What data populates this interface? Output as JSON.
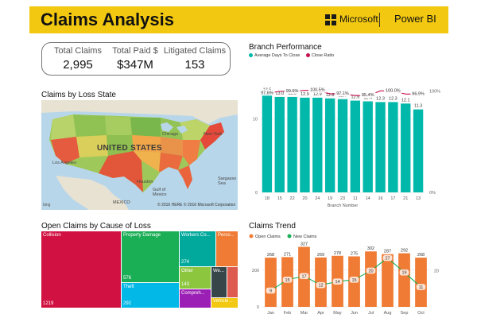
{
  "header": {
    "title": "Claims Analysis",
    "microsoft": "Microsoft",
    "product": "Power BI",
    "background": "#F2C811"
  },
  "kpis": [
    {
      "label": "Total Claims",
      "value": "2,995"
    },
    {
      "label": "Total Paid $",
      "value": "$347M"
    },
    {
      "label": "Litigated Claims",
      "value": "153"
    }
  ],
  "map": {
    "title": "Claims by Loss State",
    "country_label": "UNITED STATES",
    "labels": [
      "Chicago",
      "New York",
      "Los Angeles",
      "Houston",
      "Gulf of Mexico",
      "MEXICO",
      "Sargasso Sea"
    ],
    "copyright": "© 2016 HERE   © 2016 Microsoft Corporation",
    "attribution": "bing"
  },
  "chart_data": [
    {
      "type": "bar",
      "title": "Branch Performance",
      "xlabel": "Branch Number",
      "legend": [
        "Average Days To Close",
        "Close Ratio"
      ],
      "legend_position": "top-left",
      "categories": [
        "18",
        "15",
        "22",
        "20",
        "24",
        "19",
        "23",
        "11",
        "14",
        "16",
        "17",
        "21",
        "13"
      ],
      "series": [
        {
          "name": "Average Days To Close",
          "kind": "bar",
          "color": "#01B8AA",
          "values": [
            13.5,
            13.0,
            13.0,
            12.9,
            12.9,
            12.8,
            12.7,
            12.5,
            12.4,
            12.3,
            12.3,
            12.1,
            11.3
          ],
          "data_labels": [
            "13.5",
            "13.0",
            "13.0",
            "12.9",
            "12.9",
            "12.8",
            "12.7",
            "12.5",
            "12.4",
            "12.3",
            "12.3",
            "12.1",
            "11.3"
          ]
        },
        {
          "name": "Close Ratio",
          "kind": "line",
          "color": "#C4124A",
          "values": [
            97.6,
            99.6,
            99.6,
            100.5,
            100.5,
            97.1,
            97.1,
            95.4,
            95.4,
            100.0,
            100.0,
            96.9,
            96.9
          ],
          "shown_labels": [
            {
              "index": 0,
              "text": "97.6%"
            },
            {
              "index": 2,
              "text": "99.6%"
            },
            {
              "index": 4,
              "text": "100.5%"
            },
            {
              "index": 6,
              "text": "97.1%"
            },
            {
              "index": 8,
              "text": "95.4%"
            },
            {
              "index": 10,
              "text": "100.0%"
            },
            {
              "index": 12,
              "text": "96.9%"
            }
          ]
        }
      ],
      "left_axis": {
        "ticks": [
          "0",
          "10"
        ],
        "ylim": [
          0,
          17
        ]
      },
      "right_axis": {
        "ticks": [
          "0%",
          "100%"
        ],
        "ylim": [
          0,
          123
        ]
      }
    },
    {
      "type": "treemap",
      "title": "Open Claims by Cause of Loss",
      "items": [
        {
          "label": "Collision",
          "value": "1219",
          "color": "#D11142"
        },
        {
          "label": "Property Damage",
          "value": "576",
          "color": "#1AAE55"
        },
        {
          "label": "Theft",
          "value": "292",
          "color": "#01B8E6"
        },
        {
          "label": "Workers Co...",
          "value": "274",
          "color": "#01A99C"
        },
        {
          "label": "Other",
          "value": "143",
          "color": "#8CC63F"
        },
        {
          "label": "Compreh...",
          "value": "",
          "color": "#9B1FB5"
        },
        {
          "label": "Perso...",
          "value": "",
          "color": "#F07B34"
        },
        {
          "label": "We...",
          "value": "",
          "color": "#374649"
        },
        {
          "label": "Vehicle ...",
          "value": "",
          "color": "#F2C811"
        }
      ]
    },
    {
      "type": "bar",
      "title": "Claims Trend",
      "categories": [
        "Jan",
        "Feb",
        "Mar",
        "Apr",
        "May",
        "Jun",
        "Jul",
        "Aug",
        "Sep",
        "Oct"
      ],
      "legend": [
        "Open Claims",
        "New Claims"
      ],
      "legend_position": "top-left",
      "series": [
        {
          "name": "Open Claims",
          "kind": "bar",
          "color": "#F07B34",
          "values": [
            268,
            271,
            327,
            269,
            278,
            275,
            302,
            287,
            292,
            268
          ]
        },
        {
          "name": "New Claims",
          "kind": "line",
          "color": "#1AAE55",
          "values": [
            9,
            15,
            17,
            12,
            14,
            15,
            20,
            27,
            19,
            11
          ]
        }
      ],
      "left_axis": {
        "ticks": [
          "0",
          "200"
        ],
        "ylim": [
          0,
          355
        ]
      },
      "right_axis": {
        "ticks": [
          "20"
        ],
        "ylim": [
          0,
          36
        ]
      }
    }
  ]
}
